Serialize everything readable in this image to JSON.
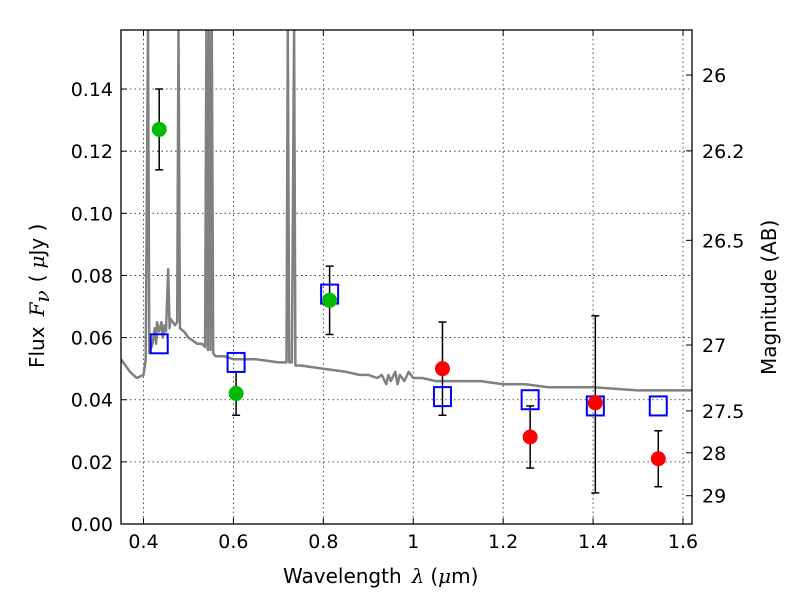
{
  "chart_data": {
    "type": "scatter",
    "xlabel_text": "Wavelength",
    "xlabel_sym": "λ",
    "xlabel_unit_open": "(",
    "xlabel_unit_sym": "μ",
    "xlabel_unit_close": "m)",
    "ylabel_text": "Flux",
    "ylabel_sym": "F",
    "ylabel_sub": "ν",
    "ylabel_unit_open": "(",
    "ylabel_unit_sym": "μ",
    "ylabel_unit_close": "Jy )",
    "y2label": "Magnitude (AB)",
    "xlim": [
      0.35,
      1.62
    ],
    "ylim": [
      0.0,
      0.159
    ],
    "grid": true,
    "x_ticks": [
      0.4,
      0.6,
      0.8,
      1.0,
      1.2,
      1.4,
      1.6
    ],
    "x_tick_labels": [
      "0.4",
      "0.6",
      "0.8",
      "1",
      "1.2",
      "1.4",
      "1.6"
    ],
    "y_ticks": [
      0.0,
      0.02,
      0.04,
      0.06,
      0.08,
      0.1,
      0.12,
      0.14
    ],
    "y_tick_labels": [
      "0.00",
      "0.02",
      "0.04",
      "0.06",
      "0.08",
      "0.10",
      "0.12",
      "0.14"
    ],
    "mag_ticks": [
      {
        "label": "26",
        "flux": 0.1445
      },
      {
        "label": "26.2",
        "flux": 0.1201
      },
      {
        "label": "26.5",
        "flux": 0.0913
      },
      {
        "label": "27",
        "flux": 0.0576
      },
      {
        "label": "27.5",
        "flux": 0.0364
      },
      {
        "label": "28",
        "flux": 0.0229
      },
      {
        "label": "29",
        "flux": 0.0091
      }
    ],
    "series": [
      {
        "color": "#00bb00",
        "marker": "circle",
        "points": [
          {
            "x": 0.435,
            "y": 0.127,
            "yerr_low": 0.114,
            "yerr_high": 0.14
          },
          {
            "x": 0.606,
            "y": 0.042,
            "yerr_low": 0.035,
            "yerr_high": 0.049
          },
          {
            "x": 0.814,
            "y": 0.072,
            "yerr_low": 0.061,
            "yerr_high": 0.083
          }
        ]
      },
      {
        "color": "#ff0000",
        "marker": "circle",
        "points": [
          {
            "x": 1.065,
            "y": 0.05,
            "yerr_low": 0.035,
            "yerr_high": 0.065
          },
          {
            "x": 1.26,
            "y": 0.028,
            "yerr_low": 0.018,
            "yerr_high": 0.038
          },
          {
            "x": 1.405,
            "y": 0.039,
            "yerr_low": 0.01,
            "yerr_high": 0.067
          },
          {
            "x": 1.545,
            "y": 0.021,
            "yerr_low": 0.012,
            "yerr_high": 0.03
          }
        ]
      },
      {
        "color": "#0000ff",
        "marker": "open-square",
        "points": [
          {
            "x": 0.435,
            "y": 0.058
          },
          {
            "x": 0.606,
            "y": 0.052
          },
          {
            "x": 0.814,
            "y": 0.074
          },
          {
            "x": 1.065,
            "y": 0.041
          },
          {
            "x": 1.26,
            "y": 0.04
          },
          {
            "x": 1.405,
            "y": 0.038
          },
          {
            "x": 1.545,
            "y": 0.038
          }
        ]
      },
      {
        "color": "#808080",
        "marker": "line",
        "points": [
          {
            "x": 0.35,
            "y": 0.053
          },
          {
            "x": 0.37,
            "y": 0.049
          },
          {
            "x": 0.385,
            "y": 0.047
          },
          {
            "x": 0.4,
            "y": 0.048
          },
          {
            "x": 0.405,
            "y": 0.053
          },
          {
            "x": 0.41,
            "y": 0.16
          },
          {
            "x": 0.413,
            "y": 0.055
          },
          {
            "x": 0.42,
            "y": 0.058
          },
          {
            "x": 0.425,
            "y": 0.063
          },
          {
            "x": 0.428,
            "y": 0.058
          },
          {
            "x": 0.43,
            "y": 0.065
          },
          {
            "x": 0.435,
            "y": 0.062
          },
          {
            "x": 0.44,
            "y": 0.065
          },
          {
            "x": 0.443,
            "y": 0.06
          },
          {
            "x": 0.447,
            "y": 0.064
          },
          {
            "x": 0.45,
            "y": 0.062
          },
          {
            "x": 0.455,
            "y": 0.082
          },
          {
            "x": 0.458,
            "y": 0.063
          },
          {
            "x": 0.46,
            "y": 0.066
          },
          {
            "x": 0.47,
            "y": 0.064
          },
          {
            "x": 0.475,
            "y": 0.065
          },
          {
            "x": 0.478,
            "y": 0.16
          },
          {
            "x": 0.481,
            "y": 0.063
          },
          {
            "x": 0.49,
            "y": 0.062
          },
          {
            "x": 0.5,
            "y": 0.06
          },
          {
            "x": 0.51,
            "y": 0.059
          },
          {
            "x": 0.52,
            "y": 0.058
          },
          {
            "x": 0.53,
            "y": 0.058
          },
          {
            "x": 0.537,
            "y": 0.057
          },
          {
            "x": 0.54,
            "y": 0.16
          },
          {
            "x": 0.543,
            "y": 0.056
          },
          {
            "x": 0.546,
            "y": 0.16
          },
          {
            "x": 0.549,
            "y": 0.056
          },
          {
            "x": 0.552,
            "y": 0.16
          },
          {
            "x": 0.555,
            "y": 0.055
          },
          {
            "x": 0.56,
            "y": 0.054
          },
          {
            "x": 0.58,
            "y": 0.054
          },
          {
            "x": 0.6,
            "y": 0.053
          },
          {
            "x": 0.65,
            "y": 0.053
          },
          {
            "x": 0.7,
            "y": 0.052
          },
          {
            "x": 0.718,
            "y": 0.052
          },
          {
            "x": 0.721,
            "y": 0.16
          },
          {
            "x": 0.724,
            "y": 0.052
          },
          {
            "x": 0.73,
            "y": 0.052
          },
          {
            "x": 0.735,
            "y": 0.16
          },
          {
            "x": 0.738,
            "y": 0.051
          },
          {
            "x": 0.75,
            "y": 0.051
          },
          {
            "x": 0.8,
            "y": 0.05
          },
          {
            "x": 0.85,
            "y": 0.049
          },
          {
            "x": 0.88,
            "y": 0.048
          },
          {
            "x": 0.9,
            "y": 0.048
          },
          {
            "x": 0.92,
            "y": 0.047
          },
          {
            "x": 0.93,
            "y": 0.048
          },
          {
            "x": 0.94,
            "y": 0.045
          },
          {
            "x": 0.945,
            "y": 0.048
          },
          {
            "x": 0.95,
            "y": 0.046
          },
          {
            "x": 0.96,
            "y": 0.049
          },
          {
            "x": 0.965,
            "y": 0.045
          },
          {
            "x": 0.97,
            "y": 0.048
          },
          {
            "x": 0.98,
            "y": 0.046
          },
          {
            "x": 0.99,
            "y": 0.049
          },
          {
            "x": 1.0,
            "y": 0.047
          },
          {
            "x": 1.02,
            "y": 0.047
          },
          {
            "x": 1.05,
            "y": 0.046
          },
          {
            "x": 1.1,
            "y": 0.046
          },
          {
            "x": 1.15,
            "y": 0.046
          },
          {
            "x": 1.2,
            "y": 0.045
          },
          {
            "x": 1.25,
            "y": 0.045
          },
          {
            "x": 1.3,
            "y": 0.044
          },
          {
            "x": 1.4,
            "y": 0.044
          },
          {
            "x": 1.5,
            "y": 0.043
          },
          {
            "x": 1.62,
            "y": 0.043
          }
        ]
      }
    ]
  }
}
